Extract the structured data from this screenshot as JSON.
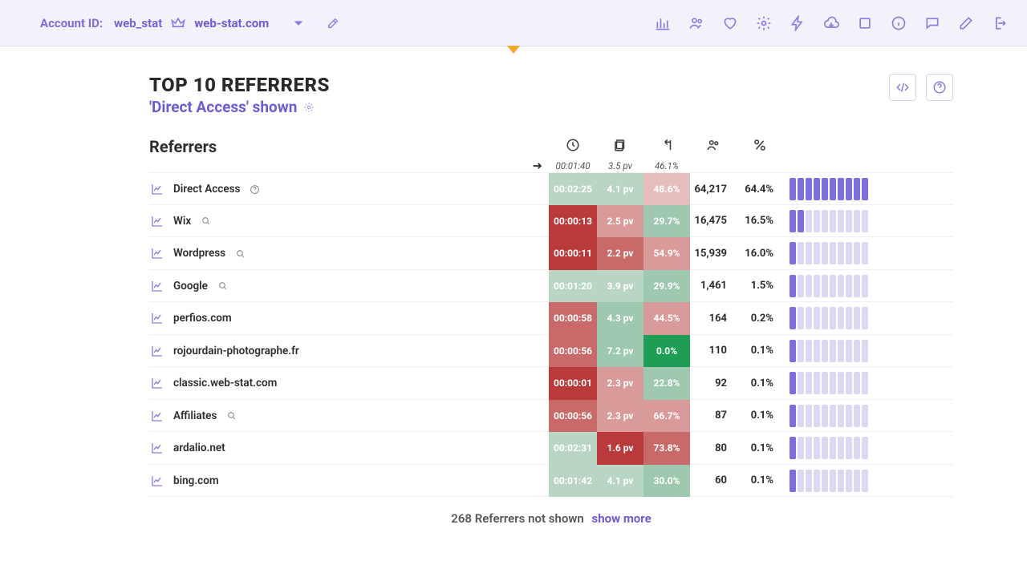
{
  "header": {
    "account_label": "Account ID:",
    "account_value": "web_stat",
    "domain": "web-stat.com"
  },
  "page": {
    "title": "TOP 10 REFERRERS",
    "subtitle": "'Direct Access' shown"
  },
  "colors": {
    "accent": "#6b5dd3",
    "bar_on": "#7c6fd9",
    "bar_off": "#dcd8f2",
    "green_dark": "#1e9e55",
    "green_mid": "#9fc8b0",
    "green_light": "#b9d5c4",
    "red_dark1": "#b83a3a",
    "red_dark2": "#b14040",
    "red_mid": "#c86a6a",
    "red_light": "#d99a9a",
    "pink_light": "#e5bdbd"
  },
  "columns": {
    "referrers": "Referrers",
    "summary": {
      "time": "00:01:40",
      "pv": "3.5 pv",
      "bounce": "46.1%"
    }
  },
  "rows": [
    {
      "name": "Direct Access",
      "extra": "help",
      "time": "00:02:25",
      "time_bg": "#b9d5c4",
      "pv": "4.1 pv",
      "pv_bg": "#b9d5c4",
      "bounce": "48.6%",
      "bounce_bg": "#e5bdbd",
      "visits": "64,217",
      "pct": "64.4%",
      "bars": 10
    },
    {
      "name": "Wix",
      "extra": "search",
      "time": "00:00:13",
      "time_bg": "#b83a3a",
      "pv": "2.5 pv",
      "pv_bg": "#d99a9a",
      "bounce": "29.7%",
      "bounce_bg": "#9fc8b0",
      "visits": "16,475",
      "pct": "16.5%",
      "bars": 2
    },
    {
      "name": "Wordpress",
      "extra": "search",
      "time": "00:00:11",
      "time_bg": "#b83a3a",
      "pv": "2.2 pv",
      "pv_bg": "#c86a6a",
      "bounce": "54.9%",
      "bounce_bg": "#d99a9a",
      "visits": "15,939",
      "pct": "16.0%",
      "bars": 1
    },
    {
      "name": "Google",
      "extra": "search",
      "time": "00:01:20",
      "time_bg": "#b9d5c4",
      "pv": "3.9 pv",
      "pv_bg": "#b9d5c4",
      "bounce": "29.9%",
      "bounce_bg": "#9fc8b0",
      "visits": "1,461",
      "pct": "1.5%",
      "bars": 1
    },
    {
      "name": "perfios.com",
      "extra": "",
      "time": "00:00:58",
      "time_bg": "#c86a6a",
      "pv": "4.3 pv",
      "pv_bg": "#9fc8b0",
      "bounce": "44.5%",
      "bounce_bg": "#d99a9a",
      "visits": "164",
      "pct": "0.2%",
      "bars": 1
    },
    {
      "name": "rojourdain-photographe.fr",
      "extra": "",
      "time": "00:00:56",
      "time_bg": "#c86a6a",
      "pv": "7.2 pv",
      "pv_bg": "#9fc8b0",
      "bounce": "0.0%",
      "bounce_bg": "#1e9e55",
      "visits": "110",
      "pct": "0.1%",
      "bars": 1
    },
    {
      "name": "classic.web-stat.com",
      "extra": "",
      "time": "00:00:01",
      "time_bg": "#b83a3a",
      "pv": "2.3 pv",
      "pv_bg": "#d99a9a",
      "bounce": "22.8%",
      "bounce_bg": "#9fc8b0",
      "visits": "92",
      "pct": "0.1%",
      "bars": 1
    },
    {
      "name": "Affiliates",
      "extra": "search",
      "time": "00:00:56",
      "time_bg": "#c86a6a",
      "pv": "2.3 pv",
      "pv_bg": "#d99a9a",
      "bounce": "66.7%",
      "bounce_bg": "#d99a9a",
      "visits": "87",
      "pct": "0.1%",
      "bars": 1
    },
    {
      "name": "ardalio.net",
      "extra": "",
      "time": "00:02:31",
      "time_bg": "#b9d5c4",
      "pv": "1.6 pv",
      "pv_bg": "#b83a3a",
      "bounce": "73.8%",
      "bounce_bg": "#c86a6a",
      "visits": "80",
      "pct": "0.1%",
      "bars": 1
    },
    {
      "name": "bing.com",
      "extra": "",
      "time": "00:01:42",
      "time_bg": "#b9d5c4",
      "pv": "4.1 pv",
      "pv_bg": "#b9d5c4",
      "bounce": "30.0%",
      "bounce_bg": "#9fc8b0",
      "visits": "60",
      "pct": "0.1%",
      "bars": 1
    }
  ],
  "footer": {
    "muted": "268 Referrers not shown",
    "link": "show more"
  }
}
